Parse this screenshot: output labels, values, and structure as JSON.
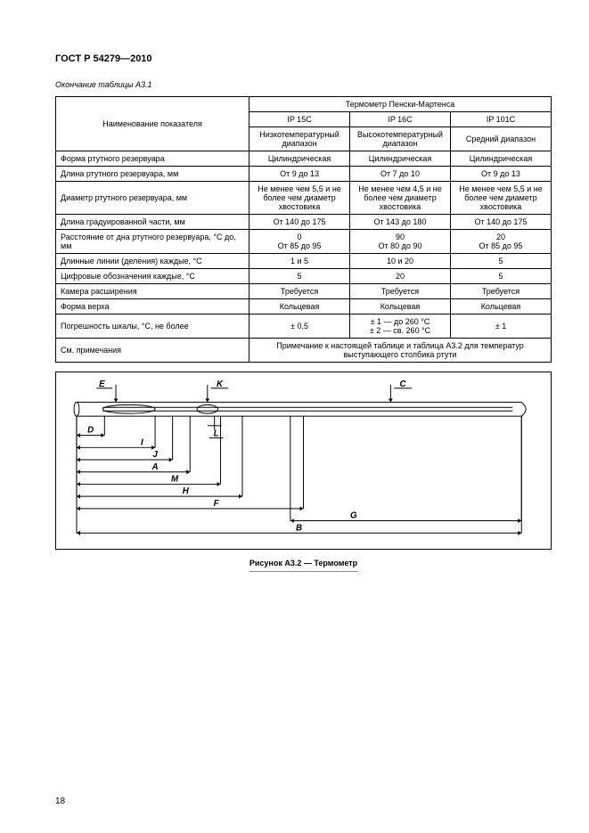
{
  "doc_title": "ГОСТ Р 54279—2010",
  "table_caption": "Окончание таблицы А3.1",
  "page_number": "18",
  "figure_caption": "Рисунок А3.2 — Термометр",
  "table": {
    "header": {
      "param_label": "Наименование показателя",
      "group_label": "Термометр Пенски-Мартенса",
      "cols": [
        "IP 15C",
        "IP 16C",
        "IP 101C"
      ],
      "subcols": [
        "Низкотемпературный диапазон",
        "Высокотемпературный диапазон",
        "Средний диапазон"
      ]
    },
    "rows": [
      {
        "p": "Форма ртутного резервуара",
        "v": [
          "Цилиндрическая",
          "Цилиндрическая",
          "Цилиндрическая"
        ]
      },
      {
        "p": "Длина ртутного резервуара, мм",
        "v": [
          "От 9 до 13",
          "От 7 до 10",
          "От 9 до 13"
        ]
      },
      {
        "p": "Диаметр ртутного резервуара, мм",
        "v": [
          "Не менее чем 5,5 и не более чем диа­метр хвостовика",
          "Не менее чем 4,5 и не более чем диа­метр хвостовика",
          "Не менее чем 5,5 и не более чем диа­метр хвостовика"
        ]
      },
      {
        "p": "Длина градуированной части, мм",
        "v": [
          "От 140 до 175",
          "От 143 до 180",
          "От 140 до 175"
        ]
      },
      {
        "p": "Расстояние от дна ртутного резервуара, °С до, мм",
        "v": [
          "0\nОт 85 до 95",
          "90\nОт 80 до 90",
          "20\nОт 85 до 95"
        ]
      },
      {
        "p": "Длинные линии (деления) каждые, °С",
        "v": [
          "1 и 5",
          "10 и 20",
          "5"
        ]
      },
      {
        "p": "Цифровые обозначения каждые, °С",
        "v": [
          "5",
          "20",
          "5"
        ]
      },
      {
        "p": "Камера расширения",
        "v": [
          "Требуется",
          "Требуется",
          "Требуется"
        ]
      },
      {
        "p": "Форма верха",
        "v": [
          "Кольцевая",
          "Кольцевая",
          "Кольцевая"
        ]
      },
      {
        "p": "Погрешность шкалы, °С, не более",
        "v": [
          "± 0,5",
          "± 1 — до 260 °С\n± 2 — св. 260 °С",
          "± 1"
        ]
      }
    ],
    "footer": {
      "label": "См. примечания",
      "note": "Примечание к настоящей таблице и таблица А3.2 для температур выступающего столбика ртути"
    }
  },
  "diagram": {
    "labels": [
      "E",
      "K",
      "C",
      "D",
      "I",
      "J",
      "A",
      "M",
      "H",
      "F",
      "G",
      "B",
      "L"
    ],
    "stroke": "#000000",
    "stroke_width": 1,
    "arrow_size": 4,
    "text_color": "#000000"
  }
}
